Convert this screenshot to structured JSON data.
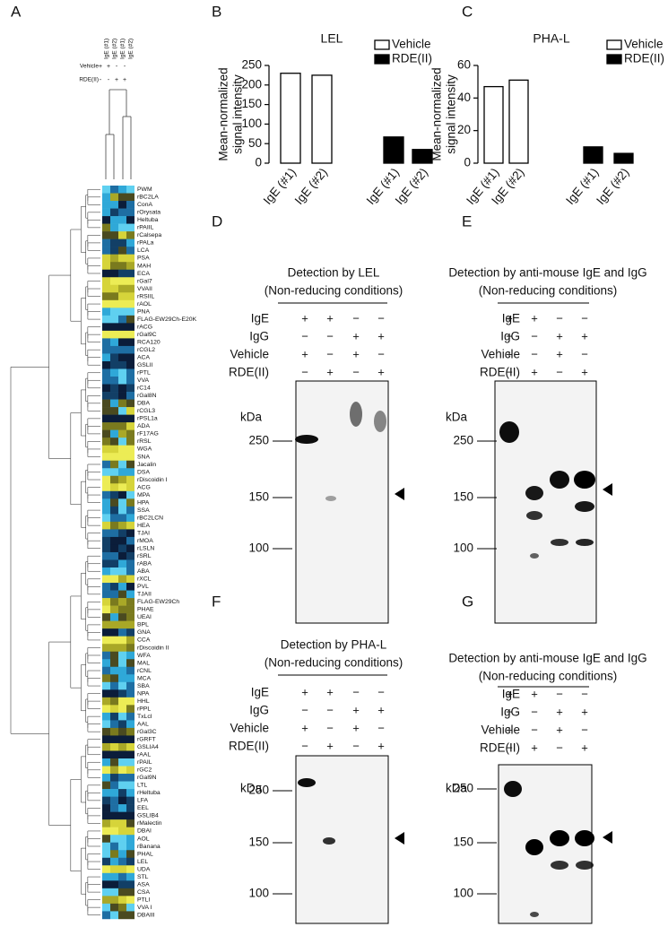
{
  "panel_labels": [
    "A",
    "B",
    "C",
    "D",
    "E",
    "F",
    "G"
  ],
  "heatmap": {
    "columns": [
      "IgE (#1)",
      "IgE (#2)",
      "IgE (#1)",
      "IgE (#2)"
    ],
    "conditions": [
      {
        "name": "Vehicle",
        "marks": [
          "+",
          "+",
          "-",
          "-"
        ]
      },
      {
        "name": "RDE(II)",
        "marks": [
          "-",
          "-",
          "+",
          "+"
        ]
      }
    ],
    "rows": [
      "PWM",
      "rBC2LA",
      "ConA",
      "rOrysata",
      "Heltuba",
      "rPAIIL",
      "rCalsepa",
      "rPALa",
      "LCA",
      "PSA",
      "MAH",
      "ECA",
      "rGal7",
      "VVAII",
      "rRSIIL",
      "rAOL",
      "PNA",
      "FLAG-EW29Ch-E20K",
      "rACG",
      "rGal9C",
      "RCA120",
      "rCGL2",
      "ACA",
      "GSLII",
      "rPTL",
      "VVA",
      "rC14",
      "rGal8N",
      "DBA",
      "rCGL3",
      "rPSL1a",
      "ADA",
      "rF17AG",
      "rRSL",
      "WGA",
      "SNA",
      "Jacalin",
      "DSA",
      "rDiscoidin I",
      "ACG",
      "MPA",
      "HPA",
      "SSA",
      "rBC2LCN",
      "HEA",
      "TJAI",
      "rMOA",
      "rLSLN",
      "rSRL",
      "rABA",
      "ABA",
      "rXCL",
      "PVL",
      "TJAII",
      "FLAG-EW29Ch",
      "PHAE",
      "UEAI",
      "BPL",
      "GNA",
      "CCA",
      "rDiscoidin II",
      "WFA",
      "MAL",
      "rCNL",
      "MCA",
      "SBA",
      "NPA",
      "HHL",
      "rPPL",
      "TxLcI",
      "AAL",
      "rGal3C",
      "rGRFT",
      "GSLIA4",
      "rAAL",
      "rPAIL",
      "rGC2",
      "rGal9N",
      "LTL",
      "rHeltuba",
      "LFA",
      "EEL",
      "GSLIB4",
      "rMalectin",
      "DBAI",
      "AOL",
      "rBanana",
      "PHAL",
      "LEL",
      "UDA",
      "STL",
      "ASA",
      "CSA",
      "PTLI",
      "VVA I",
      "DBAIII"
    ]
  },
  "chart_data": [
    {
      "type": "bar",
      "title": "LEL",
      "y_label": [
        "Mean-normalized",
        "signal intensity"
      ],
      "categories": [
        "IgE (#1)",
        "IgE (#2)",
        "IgE (#1)",
        "IgE (#2)"
      ],
      "series": [
        {
          "name": "Vehicle",
          "color": "#ffffff",
          "values": [
            230,
            225,
            null,
            null
          ]
        },
        {
          "name": "RDE(II)",
          "color": "#000000",
          "values": [
            null,
            null,
            67,
            35
          ]
        }
      ],
      "ylim": [
        0,
        250
      ],
      "yticks": [
        0,
        50,
        100,
        150,
        200,
        250
      ]
    },
    {
      "type": "bar",
      "title": "PHA-L",
      "y_label": [
        "Mean-normalized",
        "signal intensity"
      ],
      "categories": [
        "IgE (#1)",
        "IgE (#2)",
        "IgE (#1)",
        "IgE (#2)"
      ],
      "series": [
        {
          "name": "Vehicle",
          "color": "#ffffff",
          "values": [
            47,
            51,
            null,
            null
          ]
        },
        {
          "name": "RDE(II)",
          "color": "#000000",
          "values": [
            null,
            null,
            10,
            6
          ]
        }
      ],
      "ylim": [
        0,
        60
      ],
      "yticks": [
        0,
        20,
        40,
        60
      ]
    }
  ],
  "blots": [
    {
      "title": [
        "Detection by LEL",
        "(Non-reducing conditions)"
      ],
      "conditions": [
        {
          "name": "IgE",
          "marks": [
            "+",
            "+",
            "−",
            "−"
          ]
        },
        {
          "name": "IgG",
          "marks": [
            "−",
            "−",
            "+",
            "+"
          ]
        },
        {
          "name": "Vehicle",
          "marks": [
            "+",
            "−",
            "+",
            "−"
          ]
        },
        {
          "name": "RDE(II)",
          "marks": [
            "−",
            "+",
            "−",
            "+"
          ]
        }
      ],
      "unit": "kDa",
      "markers": [
        250,
        150,
        100
      ]
    },
    {
      "title": [
        "Detection by anti-mouse IgE and IgG",
        "(Non-reducing conditions)"
      ],
      "conditions": [
        {
          "name": "IgE",
          "marks": [
            "+",
            "+",
            "−",
            "−"
          ]
        },
        {
          "name": "IgG",
          "marks": [
            "−",
            "−",
            "+",
            "+"
          ]
        },
        {
          "name": "Vehicle",
          "marks": [
            "+",
            "−",
            "+",
            "−"
          ]
        },
        {
          "name": "RDE(II)",
          "marks": [
            "−",
            "+",
            "−",
            "+"
          ]
        }
      ],
      "unit": "kDa",
      "markers": [
        250,
        150,
        100
      ]
    },
    {
      "title": [
        "Detection by PHA-L",
        "(Non-reducing conditions)"
      ],
      "conditions": [
        {
          "name": "IgE",
          "marks": [
            "+",
            "+",
            "−",
            "−"
          ]
        },
        {
          "name": "IgG",
          "marks": [
            "−",
            "−",
            "+",
            "+"
          ]
        },
        {
          "name": "Vehicle",
          "marks": [
            "+",
            "−",
            "+",
            "−"
          ]
        },
        {
          "name": "RDE(II)",
          "marks": [
            "−",
            "+",
            "−",
            "+"
          ]
        }
      ],
      "unit": "kDa",
      "markers": [
        250,
        150,
        100
      ]
    },
    {
      "title": [
        "Detection by anti-mouse IgE and IgG",
        "(Non-reducing conditions)"
      ],
      "conditions": [
        {
          "name": "IgE",
          "marks": [
            "+",
            "+",
            "−",
            "−"
          ]
        },
        {
          "name": "IgG",
          "marks": [
            "−",
            "−",
            "+",
            "+"
          ]
        },
        {
          "name": "Vehicle",
          "marks": [
            "+",
            "−",
            "+",
            "−"
          ]
        },
        {
          "name": "RDE(II)",
          "marks": [
            "−",
            "+",
            "−",
            "+"
          ]
        }
      ],
      "unit": "kDa",
      "markers": [
        250,
        150,
        100
      ]
    }
  ]
}
